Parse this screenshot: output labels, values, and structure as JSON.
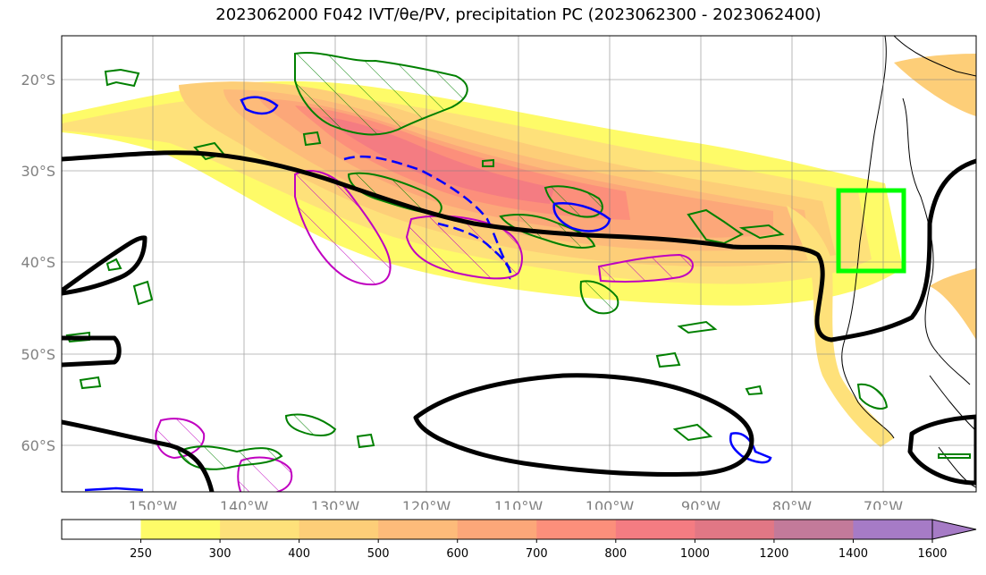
{
  "title": "2023062000 F042 IVT/θe/PV, precipitation PC (2023062300 - 2023062400)",
  "chart_data": {
    "type": "heatmap",
    "title": "2023062000 F042 IVT/θe/PV, precipitation PC (2023062300 - 2023062400)",
    "lon_ticks": [
      "150°W",
      "140°W",
      "130°W",
      "120°W",
      "110°W",
      "100°W",
      "90°W",
      "80°W",
      "70°W"
    ],
    "lat_ticks": [
      "20°S",
      "30°S",
      "40°S",
      "50°S",
      "60°S"
    ],
    "lon_range": [
      -160,
      -60
    ],
    "lat_range": [
      -65,
      -15
    ],
    "grid": true,
    "colorbar": {
      "levels": [
        250,
        300,
        400,
        500,
        600,
        700,
        800,
        1000,
        1200,
        1400,
        1600
      ],
      "colors": [
        "#fefb68",
        "#fee17a",
        "#fdce78",
        "#fdbb7a",
        "#fca779",
        "#fc8f7b",
        "#f47c82",
        "#e17785",
        "#c37a9a",
        "#a67bc6"
      ],
      "extend": "max"
    },
    "box": {
      "color": "#00ff00",
      "lon": [
        -75,
        -68
      ],
      "lat": [
        -41,
        -32
      ]
    },
    "contour_colors": {
      "black_contour": "#000000",
      "green_hatched": "#008000",
      "magenta_hatched": "#c000c0",
      "blue_contour": "#0000ff"
    }
  }
}
